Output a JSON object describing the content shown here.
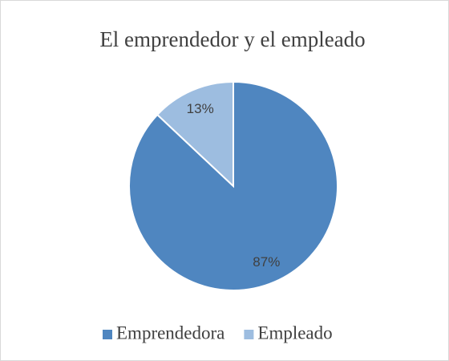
{
  "chart_data": {
    "type": "pie",
    "title": "El emprendedor y el empleado",
    "categories": [
      "Emprendedora",
      "Empleado"
    ],
    "values": [
      87,
      13
    ],
    "value_labels": [
      "87%",
      "13%"
    ],
    "colors": [
      "#4f86c0",
      "#9dbde0"
    ],
    "legend": "bottom"
  }
}
